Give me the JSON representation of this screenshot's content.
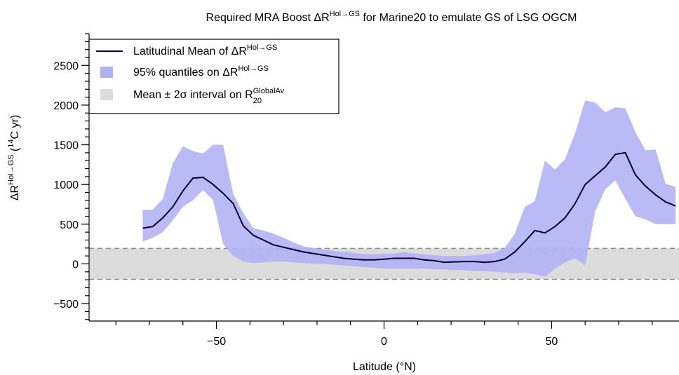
{
  "chart_data": {
    "type": "line",
    "title": {
      "prefix": "Required MRA Boost ",
      "symbol": "ΔR",
      "superscript": "Hol→GS",
      "suffix": " for Marine20 to emulate GS of LSG OGCM"
    },
    "xlabel": "Latitude (°N)",
    "ylabel": {
      "symbol": "ΔR",
      "superscript": "Hol→GS",
      "unit_open": " (",
      "unit_superscript": "14",
      "unit_rest": "C yr)"
    },
    "xlim": [
      -88,
      88
    ],
    "ylim": [
      -720,
      2900
    ],
    "x_ticks": [
      -50,
      0,
      50
    ],
    "x_tick_labels": [
      "−50",
      "0",
      "50"
    ],
    "x_minor_step": 10,
    "y_ticks": [
      -500,
      0,
      500,
      1000,
      1500,
      2000,
      2500
    ],
    "y_tick_labels": [
      "−500",
      "0",
      "500",
      "1000",
      "1500",
      "2000",
      "2500"
    ],
    "y_minor_step": 100,
    "grid": false,
    "legend_position": "top-left",
    "legend": [
      {
        "kind": "line",
        "text": "Latitudinal Mean of ",
        "symbol": "ΔR",
        "sup": "Hol→GS",
        "sub": ""
      },
      {
        "kind": "band",
        "text": "95% quantiles on ",
        "symbol": "ΔR",
        "sup": "Hol→GS",
        "sub": ""
      },
      {
        "kind": "gray",
        "text": "Mean ± 2",
        "symbol": "σ interval on R",
        "sup": "GlobalAv",
        "sub": "20"
      }
    ],
    "colors": {
      "mean_line": "#000033",
      "quantile_band": "#b0b0f5",
      "global_band": "#dcdcdc",
      "global_band_edge": "#8c8c8c"
    },
    "global_interval": {
      "upper": 195,
      "lower": -195
    },
    "series": [
      {
        "name": "Latitudinal Mean of ΔR Hol→GS",
        "x": [
          -72,
          -69,
          -66,
          -63,
          -60,
          -57,
          -54,
          -51,
          -48,
          -45,
          -42,
          -39,
          -36,
          -33,
          -30,
          -27,
          -24,
          -21,
          -18,
          -15,
          -12,
          -9,
          -6,
          -3,
          0,
          3,
          6,
          9,
          12,
          15,
          18,
          21,
          24,
          27,
          30,
          33,
          36,
          39,
          42,
          45,
          48,
          51,
          54,
          57,
          60,
          63,
          66,
          69,
          72,
          75,
          78,
          81,
          84,
          87
        ],
        "values": [
          450,
          470,
          580,
          720,
          920,
          1080,
          1090,
          1000,
          890,
          760,
          480,
          360,
          300,
          240,
          210,
          180,
          150,
          130,
          110,
          90,
          70,
          60,
          50,
          50,
          60,
          70,
          70,
          70,
          50,
          40,
          20,
          25,
          30,
          30,
          20,
          30,
          60,
          150,
          280,
          420,
          390,
          470,
          580,
          760,
          1000,
          1110,
          1220,
          1380,
          1400,
          1120,
          980,
          870,
          780,
          730
        ]
      },
      {
        "name": "95% quantiles upper",
        "x": [
          -72,
          -69,
          -66,
          -63,
          -60,
          -57,
          -54,
          -51,
          -48,
          -45,
          -42,
          -39,
          -36,
          -33,
          -30,
          -27,
          -24,
          -21,
          -18,
          -15,
          -12,
          -9,
          -6,
          -3,
          0,
          3,
          6,
          9,
          12,
          15,
          18,
          21,
          24,
          27,
          30,
          33,
          36,
          39,
          42,
          45,
          48,
          51,
          54,
          57,
          60,
          63,
          66,
          69,
          72,
          75,
          78,
          81,
          84,
          87
        ],
        "values": [
          680,
          680,
          820,
          1270,
          1480,
          1420,
          1390,
          1500,
          1500,
          880,
          640,
          450,
          420,
          380,
          330,
          270,
          220,
          200,
          180,
          160,
          150,
          140,
          120,
          120,
          130,
          130,
          150,
          130,
          120,
          110,
          100,
          100,
          100,
          110,
          120,
          140,
          200,
          380,
          720,
          790,
          1300,
          1190,
          1320,
          1650,
          2060,
          2030,
          1910,
          1970,
          1960,
          1660,
          1430,
          1440,
          1010,
          970
        ]
      },
      {
        "name": "95% quantiles lower",
        "x": [
          -72,
          -69,
          -66,
          -63,
          -60,
          -57,
          -54,
          -51,
          -48,
          -45,
          -42,
          -39,
          -36,
          -33,
          -30,
          -27,
          -24,
          -21,
          -18,
          -15,
          -12,
          -9,
          -6,
          -3,
          0,
          3,
          6,
          9,
          12,
          15,
          18,
          21,
          24,
          27,
          30,
          33,
          36,
          39,
          42,
          45,
          48,
          51,
          54,
          57,
          60,
          63,
          66,
          69,
          72,
          75,
          78,
          81,
          84,
          87
        ],
        "values": [
          280,
          330,
          400,
          550,
          720,
          800,
          930,
          800,
          250,
          100,
          30,
          10,
          20,
          30,
          30,
          20,
          10,
          0,
          0,
          -10,
          -20,
          -30,
          -40,
          -50,
          -60,
          -60,
          -60,
          -60,
          -60,
          -70,
          -70,
          -80,
          -80,
          -90,
          -90,
          -100,
          -110,
          -120,
          -110,
          -130,
          -160,
          -60,
          20,
          70,
          -20,
          660,
          940,
          1050,
          820,
          600,
          560,
          500,
          500,
          500
        ]
      }
    ]
  }
}
